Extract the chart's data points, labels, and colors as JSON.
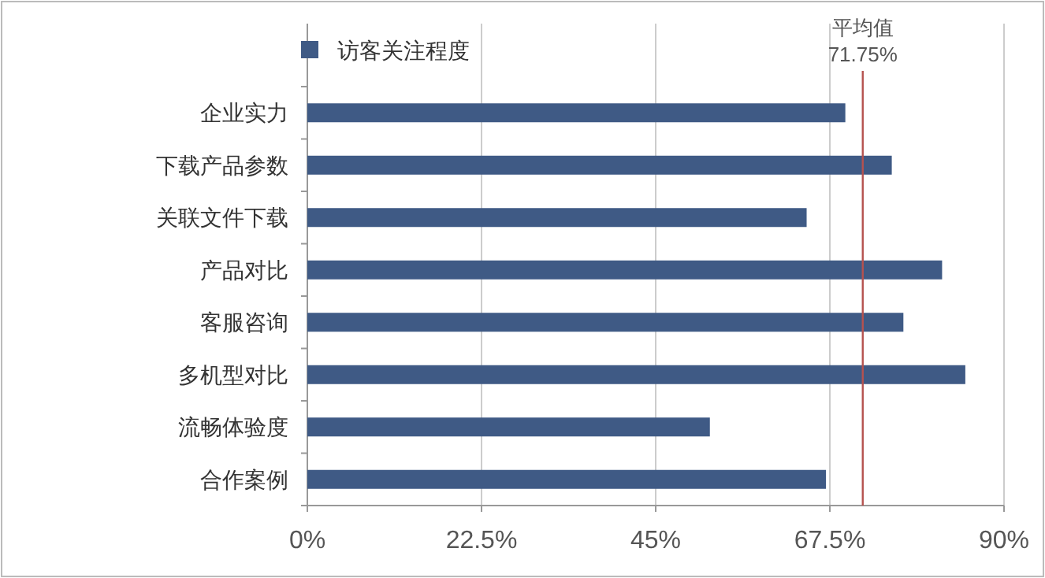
{
  "chart_data": {
    "type": "bar",
    "orientation": "horizontal",
    "categories": [
      "企业实力",
      "下载产品参数",
      "关联文件下载",
      "产品对比",
      "客服咨询",
      "多机型对比",
      "流畅体验度",
      "合作案例"
    ],
    "series": [
      {
        "name": "访客关注程度",
        "color": "#3f5a85",
        "values": [
          69.5,
          75.5,
          64.5,
          82,
          77,
          85,
          52,
          67
        ]
      }
    ],
    "xlim": [
      0,
      90
    ],
    "xticks": [
      {
        "value": 0,
        "label": "0%"
      },
      {
        "value": 22.5,
        "label": "22.5%"
      },
      {
        "value": 45,
        "label": "45%"
      },
      {
        "value": 67.5,
        "label": "67.5%"
      },
      {
        "value": 90,
        "label": "90%"
      }
    ],
    "ref_lines": [
      {
        "axis": "x",
        "value": 71.75,
        "label": "平均值 71.75%",
        "color": "#b5524f"
      }
    ],
    "grid": "x",
    "legend": "top left"
  }
}
